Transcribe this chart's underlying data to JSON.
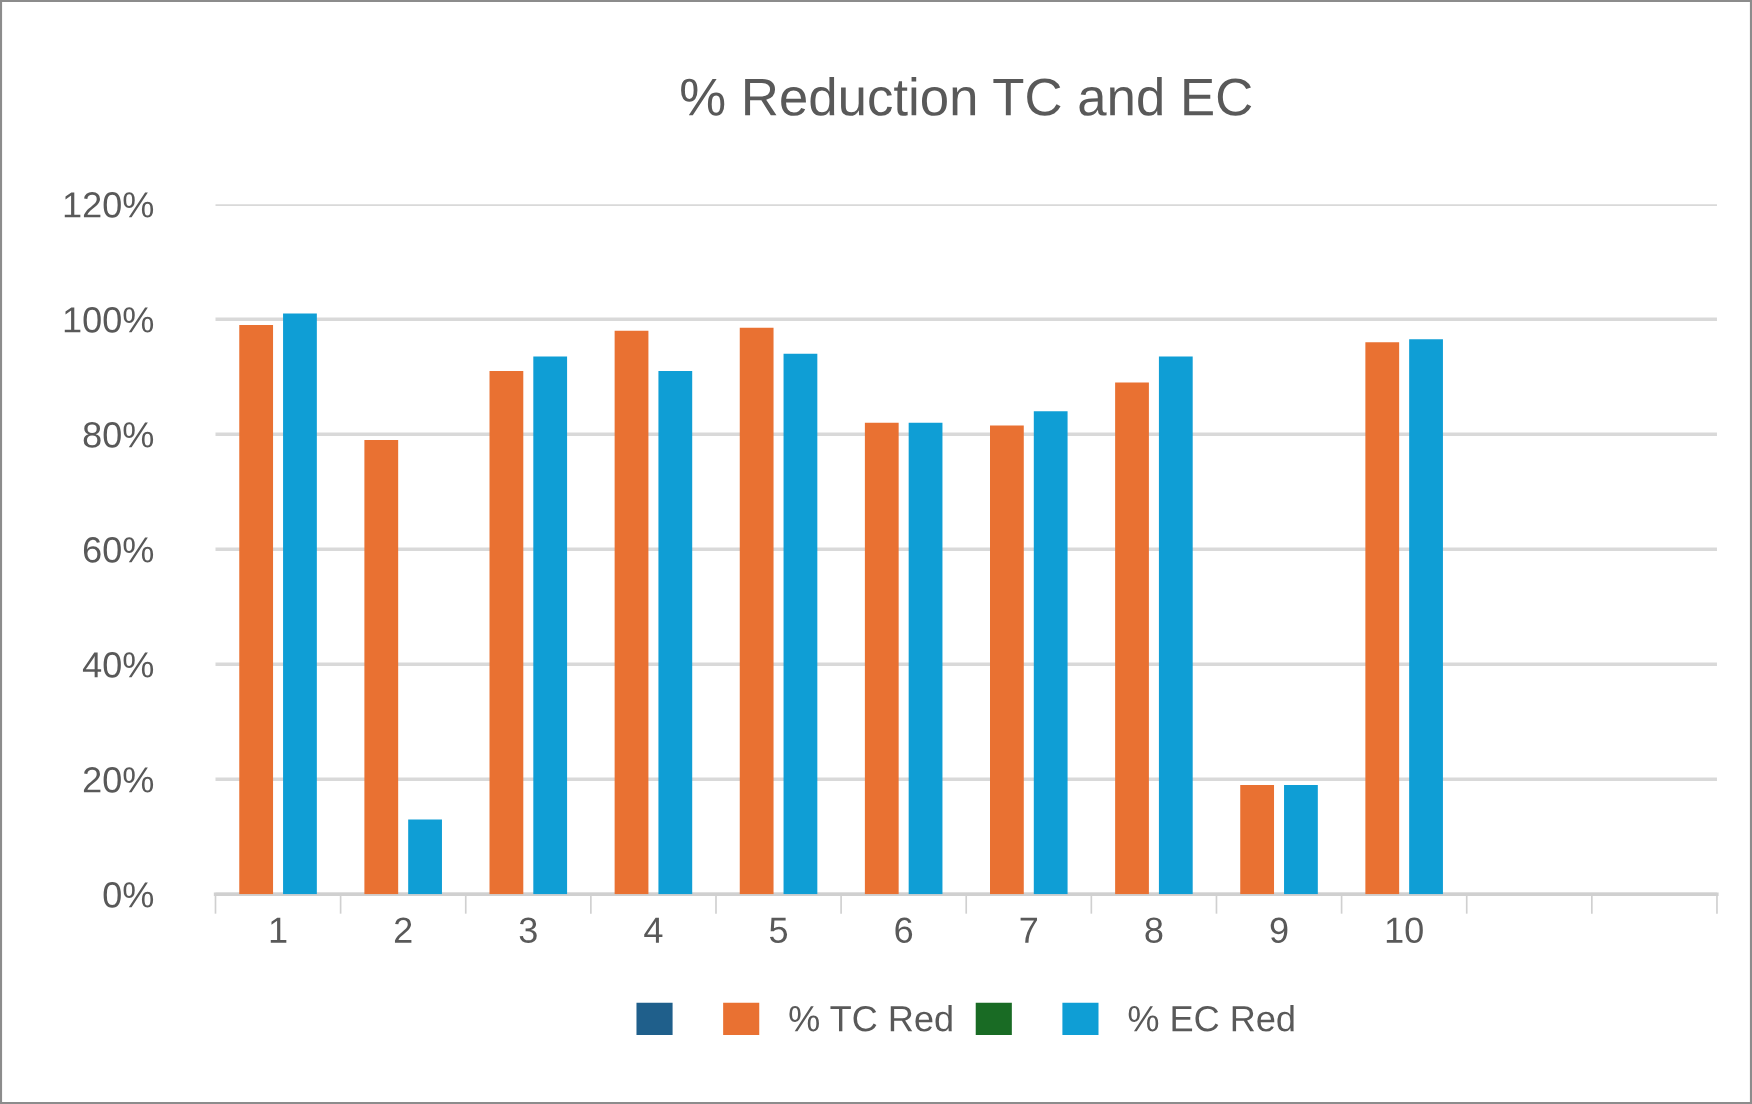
{
  "chart_data": {
    "type": "bar",
    "title": "% Reduction TC and EC",
    "categories": [
      "1",
      "2",
      "3",
      "4",
      "5",
      "6",
      "7",
      "8",
      "9",
      "10",
      null,
      null
    ],
    "series": [
      {
        "color": "#1f5f8b",
        "values": [
          null,
          null,
          null,
          null,
          null,
          null,
          null,
          null,
          null,
          null,
          null,
          null
        ]
      },
      {
        "name": "% TC Red",
        "color": "#e97132",
        "values": [
          99,
          79,
          91,
          98,
          98.5,
          82,
          81.5,
          89,
          19,
          96,
          null,
          null
        ]
      },
      {
        "color": "#196b24",
        "values": [
          null,
          null,
          null,
          null,
          null,
          null,
          null,
          null,
          null,
          null,
          null,
          null
        ]
      },
      {
        "name": "% EC Red",
        "color": "#0f9ed5",
        "values": [
          101,
          13,
          93.5,
          91,
          94,
          82,
          84,
          93.5,
          19,
          96.5,
          null,
          null
        ]
      }
    ],
    "ylim": [
      0,
      120
    ],
    "yticks": [
      {
        "value": 0,
        "label": "0%"
      },
      {
        "value": 20,
        "label": "20%"
      },
      {
        "value": 40,
        "label": "40%"
      },
      {
        "value": 60,
        "label": "60%"
      },
      {
        "value": 80,
        "label": "80%"
      },
      {
        "value": 100,
        "label": "100%"
      },
      {
        "value": 120,
        "label": "120%"
      }
    ],
    "grid": "y",
    "legend": "bottom"
  }
}
